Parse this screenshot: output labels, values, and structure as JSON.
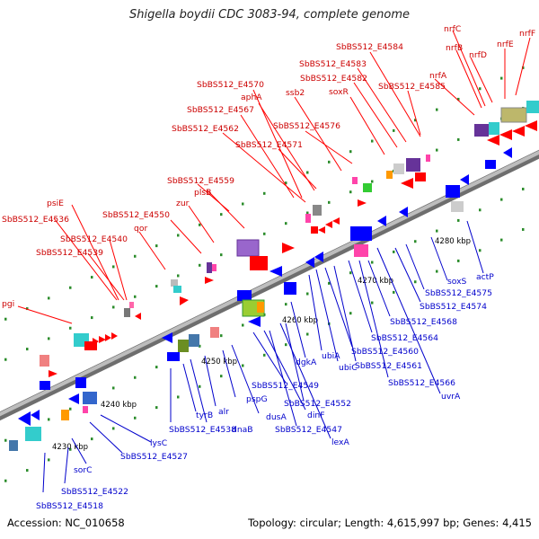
{
  "title": "Shigella boydii CDC 3083-94, complete genome",
  "footer": {
    "accession": "Accession: NC_010658",
    "summary": "Topology: circular; Length: 4,615,997 bp; Genes: 4,415"
  },
  "colors": {
    "red_label": "#cc0000",
    "blue_label": "#0000cc",
    "forward_red": "#ff0000",
    "reverse_blue": "#0000ff",
    "backbone": "#9a9a9a",
    "tick_green": "#2b8c2b"
  },
  "scale_labels": [
    "4230 kbp",
    "4240 kbp",
    "4250 kbp",
    "4260 kbp",
    "4270 kbp",
    "4280 kbp"
  ],
  "top_labels": [
    "pgi",
    "SbBS512_E4536",
    "psiE",
    "SbBS512_E4539",
    "SbBS512_E4540",
    "qor",
    "SbBS512_E4550",
    "zur",
    "plsB",
    "SbBS512_E4559",
    "SbBS512_E4562",
    "SbBS512_E4567",
    "SbBS512_E4570",
    "aphA",
    "SbBS512_E4571",
    "ssb2",
    "SbBS512_E4576",
    "soxR",
    "SbBS512_E4582",
    "SbBS512_E4583",
    "SbBS512_E4584",
    "SbBS512_E4585",
    "nrfA",
    "nrfB",
    "nrfC",
    "nrfD",
    "nrfE",
    "nrfF"
  ],
  "bottom_labels": [
    "SbBS512_E4518",
    "SbBS512_E4522",
    "sorC",
    "SbBS512_E4527",
    "lysC",
    "SbBS512_E4538",
    "tyrB",
    "dnaB",
    "alr",
    "pspG",
    "dusA",
    "SbBS512_E4549",
    "dinF",
    "SbBS512_E4547",
    "lexA",
    "SbBS512_E4552",
    "dgkA",
    "ubiA",
    "ubiC",
    "SbBS512_E4560",
    "SbBS512_E4561",
    "SbBS512_E4564",
    "SbBS512_E4566",
    "uvrA",
    "SbBS512_E4568",
    "SbBS512_E4574",
    "SbBS512_E4575",
    "soxS",
    "actP"
  ]
}
